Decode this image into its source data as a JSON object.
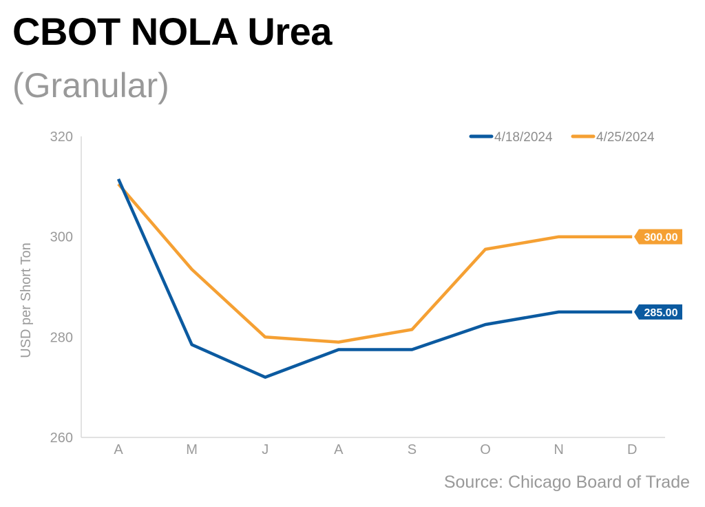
{
  "chart_data": {
    "type": "line",
    "title": "CBOT NOLA Urea",
    "subtitle": "(Granular)",
    "source": "Source: Chicago Board of Trade",
    "xlabel": "",
    "ylabel": "USD per Short Ton",
    "categories": [
      "A",
      "M",
      "J",
      "A",
      "S",
      "O",
      "N",
      "D"
    ],
    "ylim": [
      260,
      320
    ],
    "yticks": [
      260,
      280,
      300,
      320
    ],
    "legend_position": "top-right",
    "series": [
      {
        "name": "4/18/2024",
        "color": "#0b5aa0",
        "values": [
          311.5,
          278.5,
          272,
          277.5,
          277.5,
          282.5,
          285,
          285
        ],
        "end_label": "285.00"
      },
      {
        "name": "4/25/2024",
        "color": "#f5a033",
        "values": [
          310.5,
          293.5,
          280,
          279,
          281.5,
          297.5,
          300,
          300
        ],
        "end_label": "300.00"
      }
    ]
  }
}
